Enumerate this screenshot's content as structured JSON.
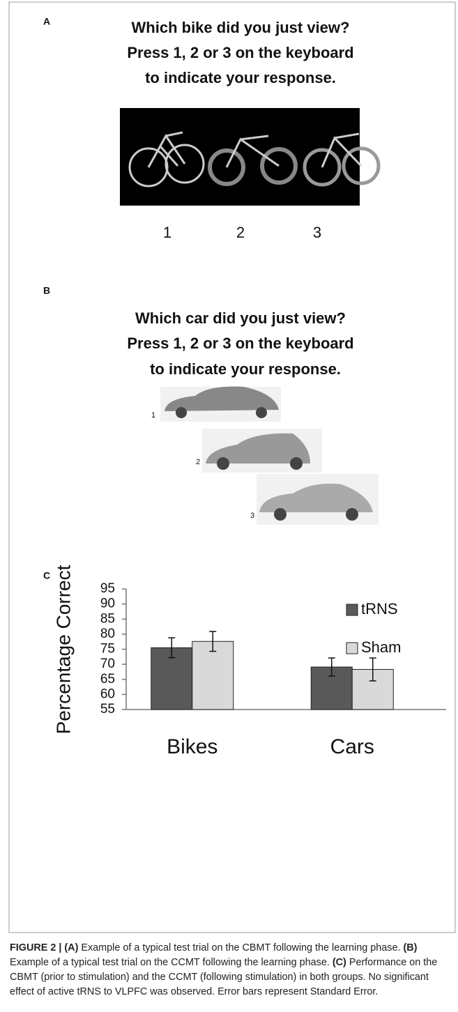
{
  "panel_a": {
    "label": "A",
    "title": [
      "Which bike did you just view?",
      "Press 1, 2 or 3 on the keyboard",
      "to indicate your response."
    ],
    "options": [
      "1",
      "2",
      "3"
    ]
  },
  "panel_b": {
    "label": "B",
    "title": [
      "Which car did you just view?",
      "Press 1, 2 or 3 on the keyboard",
      "to indicate your response."
    ],
    "options": [
      "1",
      "2",
      "3"
    ]
  },
  "panel_c": {
    "label": "C"
  },
  "chart_data": {
    "type": "bar",
    "ylabel": "Percentage Correct",
    "categories": [
      "Bikes",
      "Cars"
    ],
    "series": [
      {
        "name": "tRNS",
        "color": "#595959",
        "values": [
          75.5,
          69.1
        ],
        "errors": [
          3.3,
          3.0
        ]
      },
      {
        "name": "Sham",
        "color": "#d9d9d9",
        "values": [
          77.6,
          68.3
        ],
        "errors": [
          3.3,
          3.8
        ]
      }
    ],
    "ylim": [
      55,
      95
    ],
    "yticks": [
      55,
      60,
      65,
      70,
      75,
      80,
      85,
      90,
      95
    ],
    "grid": false,
    "legend": "upper right"
  },
  "caption": [
    "FIGURE 2 | (A)",
    " Example of a typical test trial on the CBMT following the learning phase. ",
    "(B)",
    " Example of a typical test trial on the CCMT following the learning phase. ",
    "(C)",
    " Performance on the CBMT (prior to stimulation) and the CCMT (following stimulation) in both groups. No significant effect of active tRNS to VLPFC was observed. Error bars represent Standard Error."
  ]
}
